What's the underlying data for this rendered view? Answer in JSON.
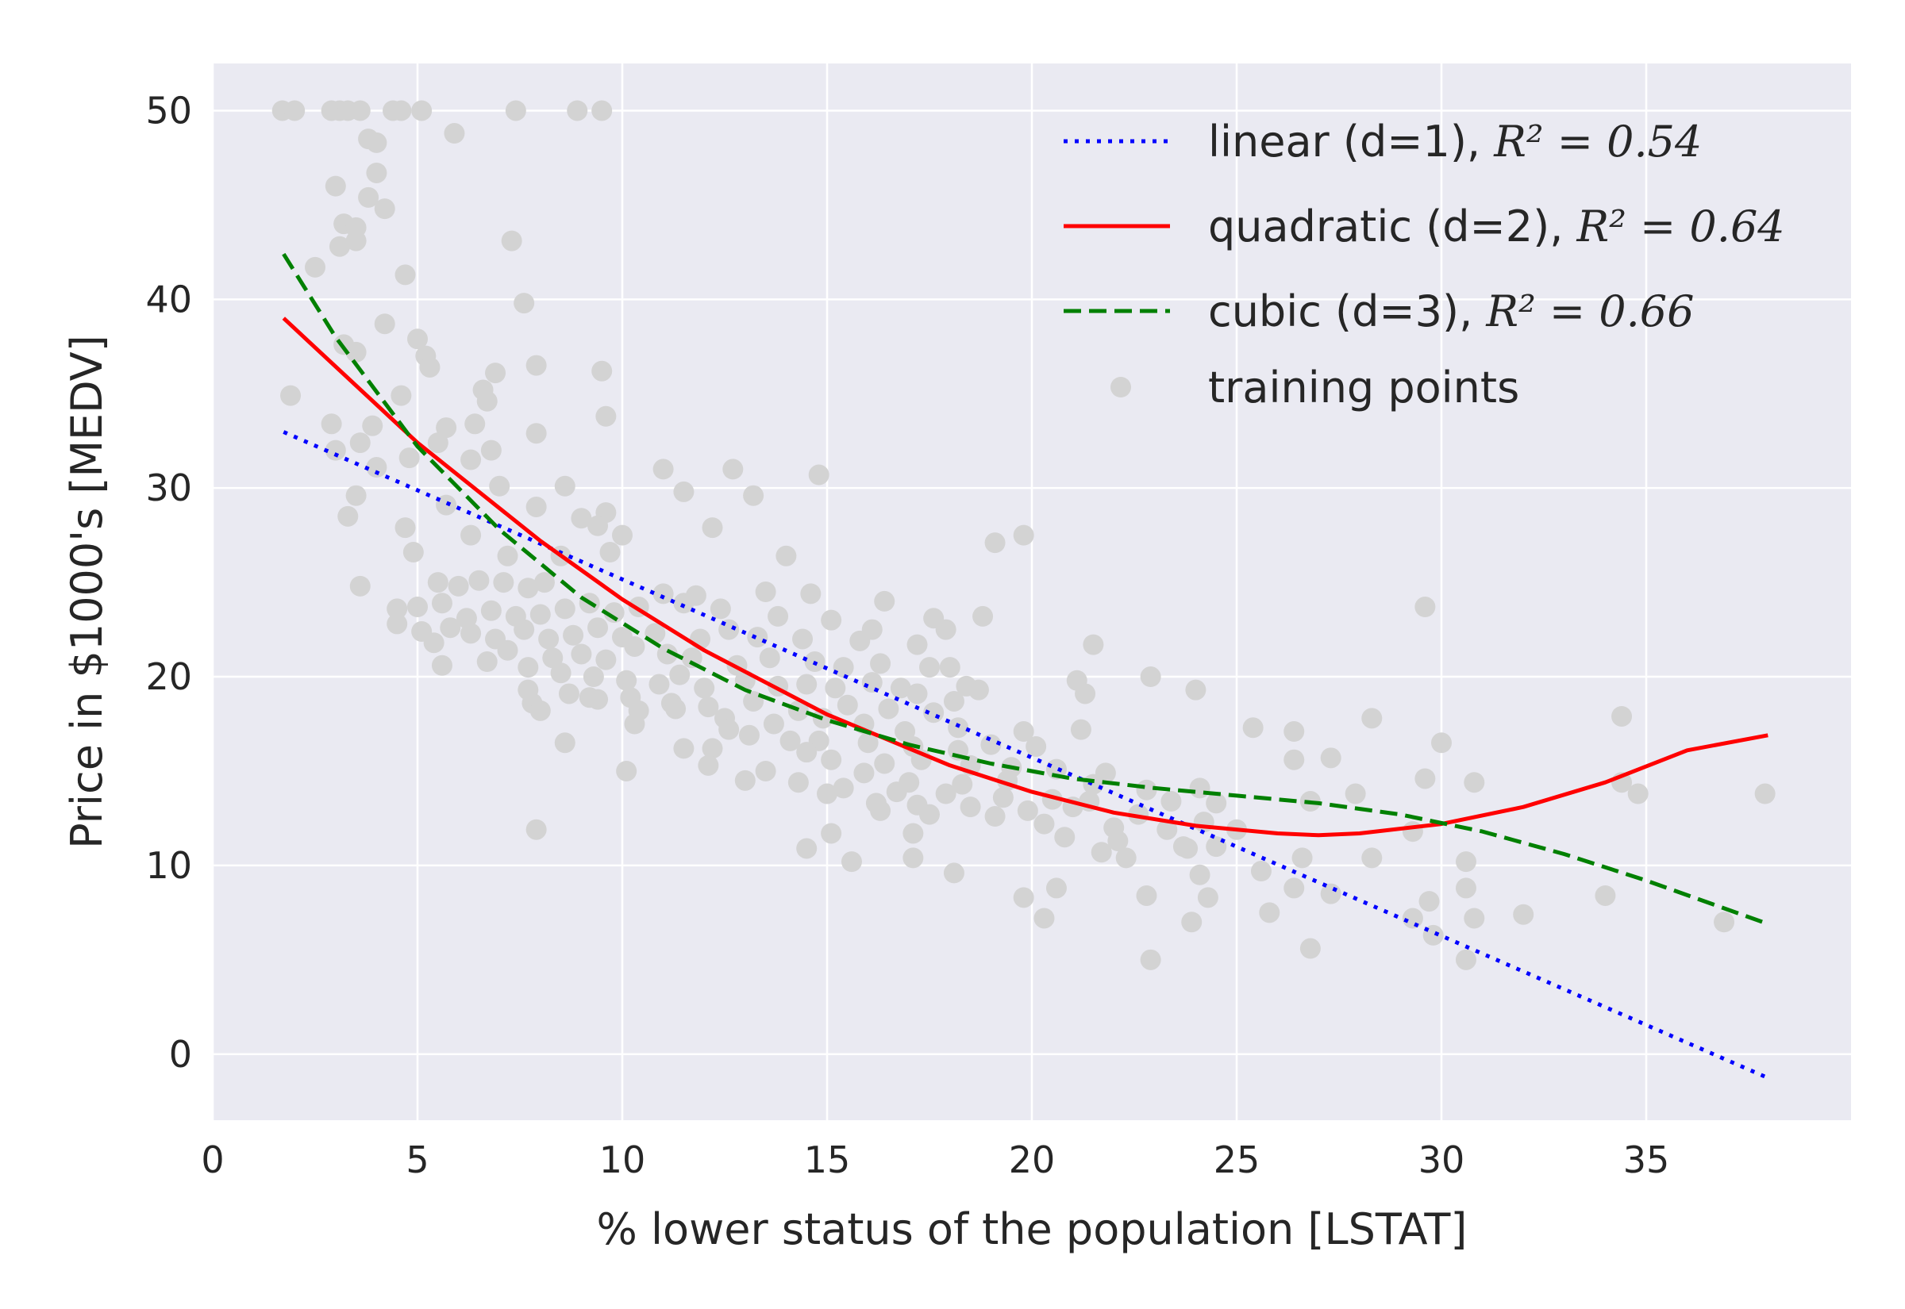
{
  "chart_data": {
    "type": "scatter",
    "xlabel": "% lower status of the population [LSTAT]",
    "ylabel": "Price in $1000's [MEDV]",
    "xlim": [
      0,
      40
    ],
    "ylim": [
      -3.5,
      52.5
    ],
    "xticks": [
      0,
      5,
      10,
      15,
      20,
      25,
      30,
      35
    ],
    "yticks": [
      0,
      10,
      20,
      30,
      40,
      50
    ],
    "grid": true,
    "legend_position": "top-right",
    "series": [
      {
        "name": "linear (d=1)",
        "r2_label": "R² = 0.54",
        "style": "dotted",
        "color": "#0000ff",
        "x": [
          1.73,
          37.97
        ],
        "y": [
          32.97,
          -1.26
        ]
      },
      {
        "name": "quadratic (d=2)",
        "r2_label": "R² = 0.64",
        "style": "solid",
        "color": "#ff0000",
        "x": [
          1.73,
          5,
          8,
          10,
          12,
          15,
          18,
          20,
          22,
          24,
          26,
          27,
          28,
          30,
          32,
          34,
          36,
          37.97
        ],
        "y": [
          39.0,
          32.4,
          27.2,
          24.1,
          21.4,
          18.0,
          15.3,
          13.9,
          12.8,
          12.1,
          11.7,
          11.6,
          11.7,
          12.2,
          13.1,
          14.4,
          16.1,
          16.9
        ]
      },
      {
        "name": "cubic (d=3)",
        "r2_label": "R² = 0.66",
        "style": "dashed",
        "color": "#008000",
        "x": [
          1.73,
          3,
          5,
          7,
          9,
          11,
          13,
          15,
          17,
          19,
          21,
          23,
          25,
          27,
          29,
          31,
          33,
          35,
          37.97
        ],
        "y": [
          42.4,
          38.0,
          32.2,
          27.8,
          24.2,
          21.5,
          19.3,
          17.7,
          16.4,
          15.4,
          14.6,
          14.1,
          13.7,
          13.3,
          12.7,
          11.8,
          10.6,
          9.2,
          6.9
        ]
      }
    ],
    "scatter": {
      "name": "training points",
      "color": "#d3d3d3",
      "points": [
        [
          1.7,
          50
        ],
        [
          2.0,
          50
        ],
        [
          2.9,
          50
        ],
        [
          3.1,
          50
        ],
        [
          3.3,
          50
        ],
        [
          3.6,
          50
        ],
        [
          4.4,
          50
        ],
        [
          4.6,
          50
        ],
        [
          5.1,
          50
        ],
        [
          7.4,
          50
        ],
        [
          8.9,
          50
        ],
        [
          9.5,
          50
        ],
        [
          5.9,
          48.8
        ],
        [
          3.8,
          48.5
        ],
        [
          4.0,
          48.3
        ],
        [
          4.0,
          46.7
        ],
        [
          3.0,
          46.0
        ],
        [
          3.8,
          45.4
        ],
        [
          4.2,
          44.8
        ],
        [
          3.2,
          44.0
        ],
        [
          3.5,
          43.8
        ],
        [
          3.1,
          42.8
        ],
        [
          3.5,
          43.1
        ],
        [
          7.3,
          43.1
        ],
        [
          2.5,
          41.7
        ],
        [
          4.7,
          41.3
        ],
        [
          7.6,
          39.8
        ],
        [
          4.2,
          38.7
        ],
        [
          5.0,
          37.9
        ],
        [
          3.2,
          37.6
        ],
        [
          3.5,
          37.2
        ],
        [
          5.2,
          37.0
        ],
        [
          5.3,
          36.4
        ],
        [
          7.9,
          36.5
        ],
        [
          9.5,
          36.2
        ],
        [
          6.9,
          36.1
        ],
        [
          1.9,
          34.9
        ],
        [
          6.6,
          35.2
        ],
        [
          6.7,
          34.6
        ],
        [
          4.6,
          34.9
        ],
        [
          2.9,
          33.4
        ],
        [
          3.9,
          33.3
        ],
        [
          5.7,
          33.2
        ],
        [
          6.4,
          33.4
        ],
        [
          9.6,
          33.8
        ],
        [
          5.5,
          32.4
        ],
        [
          7.9,
          32.9
        ],
        [
          3.6,
          32.4
        ],
        [
          3.0,
          32.0
        ],
        [
          4.8,
          31.6
        ],
        [
          6.3,
          31.5
        ],
        [
          6.8,
          32.0
        ],
        [
          4.0,
          31.1
        ],
        [
          12.7,
          31.0
        ],
        [
          14.8,
          30.7
        ],
        [
          11.0,
          31.0
        ],
        [
          7.0,
          30.1
        ],
        [
          8.6,
          30.1
        ],
        [
          3.5,
          29.6
        ],
        [
          11.5,
          29.8
        ],
        [
          13.2,
          29.6
        ],
        [
          5.7,
          29.1
        ],
        [
          7.9,
          29.0
        ],
        [
          3.3,
          28.5
        ],
        [
          9.0,
          28.4
        ],
        [
          9.6,
          28.7
        ],
        [
          9.4,
          28.0
        ],
        [
          12.2,
          27.9
        ],
        [
          4.7,
          27.9
        ],
        [
          6.3,
          27.5
        ],
        [
          10.0,
          27.5
        ],
        [
          9.7,
          26.6
        ],
        [
          14.0,
          26.4
        ],
        [
          19.8,
          27.5
        ],
        [
          19.1,
          27.1
        ],
        [
          4.9,
          26.6
        ],
        [
          7.2,
          26.4
        ],
        [
          8.5,
          26.4
        ],
        [
          5.5,
          25.0
        ],
        [
          6.0,
          24.8
        ],
        [
          6.5,
          25.1
        ],
        [
          7.1,
          25.0
        ],
        [
          7.7,
          24.7
        ],
        [
          8.1,
          25.0
        ],
        [
          3.6,
          24.8
        ],
        [
          11.0,
          24.4
        ],
        [
          11.8,
          24.3
        ],
        [
          14.6,
          24.4
        ],
        [
          13.5,
          24.5
        ],
        [
          16.4,
          24.0
        ],
        [
          4.5,
          23.6
        ],
        [
          5.0,
          23.7
        ],
        [
          5.6,
          23.9
        ],
        [
          6.2,
          23.1
        ],
        [
          6.8,
          23.5
        ],
        [
          7.4,
          23.2
        ],
        [
          8.0,
          23.3
        ],
        [
          8.6,
          23.6
        ],
        [
          9.2,
          23.9
        ],
        [
          9.8,
          23.4
        ],
        [
          10.4,
          23.7
        ],
        [
          11.5,
          23.9
        ],
        [
          12.4,
          23.6
        ],
        [
          13.8,
          23.2
        ],
        [
          15.1,
          23.0
        ],
        [
          17.6,
          23.1
        ],
        [
          18.8,
          23.2
        ],
        [
          4.5,
          22.8
        ],
        [
          5.1,
          22.4
        ],
        [
          5.8,
          22.6
        ],
        [
          6.3,
          22.3
        ],
        [
          6.9,
          22.0
        ],
        [
          7.6,
          22.5
        ],
        [
          8.2,
          22.0
        ],
        [
          8.8,
          22.2
        ],
        [
          9.4,
          22.6
        ],
        [
          10.0,
          22.1
        ],
        [
          10.8,
          22.3
        ],
        [
          11.9,
          22.0
        ],
        [
          12.6,
          22.5
        ],
        [
          13.3,
          22.1
        ],
        [
          14.4,
          22.0
        ],
        [
          15.8,
          21.9
        ],
        [
          16.1,
          22.5
        ],
        [
          17.2,
          21.7
        ],
        [
          17.9,
          22.5
        ],
        [
          21.5,
          21.7
        ],
        [
          5.4,
          21.8
        ],
        [
          6.7,
          20.8
        ],
        [
          7.2,
          21.4
        ],
        [
          8.3,
          21.0
        ],
        [
          9.0,
          21.2
        ],
        [
          9.6,
          20.9
        ],
        [
          10.3,
          21.6
        ],
        [
          11.1,
          21.2
        ],
        [
          11.7,
          21.0
        ],
        [
          12.8,
          20.6
        ],
        [
          13.6,
          21.0
        ],
        [
          14.7,
          20.8
        ],
        [
          15.4,
          20.5
        ],
        [
          16.3,
          20.7
        ],
        [
          17.5,
          20.5
        ],
        [
          18.0,
          20.5
        ],
        [
          5.6,
          20.6
        ],
        [
          7.7,
          20.5
        ],
        [
          8.5,
          20.2
        ],
        [
          9.3,
          20.0
        ],
        [
          10.1,
          19.8
        ],
        [
          10.9,
          19.6
        ],
        [
          11.4,
          20.1
        ],
        [
          12.0,
          19.4
        ],
        [
          13.0,
          19.8
        ],
        [
          13.8,
          19.5
        ],
        [
          14.5,
          19.6
        ],
        [
          15.2,
          19.4
        ],
        [
          16.1,
          19.7
        ],
        [
          16.8,
          19.4
        ],
        [
          17.2,
          19.1
        ],
        [
          18.4,
          19.5
        ],
        [
          18.7,
          19.3
        ],
        [
          21.1,
          19.8
        ],
        [
          21.3,
          19.1
        ],
        [
          22.9,
          20.0
        ],
        [
          24.0,
          19.3
        ],
        [
          7.7,
          19.3
        ],
        [
          8.7,
          19.1
        ],
        [
          9.4,
          18.8
        ],
        [
          10.2,
          18.9
        ],
        [
          11.2,
          18.6
        ],
        [
          12.1,
          18.4
        ],
        [
          13.2,
          18.7
        ],
        [
          14.3,
          18.2
        ],
        [
          15.5,
          18.5
        ],
        [
          16.5,
          18.3
        ],
        [
          17.6,
          18.1
        ],
        [
          18.1,
          18.7
        ],
        [
          7.8,
          18.6
        ],
        [
          8.0,
          18.2
        ],
        [
          9.2,
          18.9
        ],
        [
          10.4,
          18.2
        ],
        [
          11.3,
          18.3
        ],
        [
          12.5,
          17.8
        ],
        [
          13.7,
          17.5
        ],
        [
          14.9,
          17.8
        ],
        [
          15.9,
          17.5
        ],
        [
          16.9,
          17.1
        ],
        [
          18.2,
          17.3
        ],
        [
          19.8,
          17.1
        ],
        [
          21.2,
          17.2
        ],
        [
          25.4,
          17.3
        ],
        [
          26.4,
          17.1
        ],
        [
          28.3,
          17.8
        ],
        [
          34.4,
          17.9
        ],
        [
          10.3,
          17.5
        ],
        [
          12.6,
          17.2
        ],
        [
          13.1,
          16.9
        ],
        [
          14.1,
          16.6
        ],
        [
          14.8,
          16.6
        ],
        [
          16.0,
          16.5
        ],
        [
          17.1,
          16.3
        ],
        [
          18.2,
          16.1
        ],
        [
          19.0,
          16.4
        ],
        [
          20.1,
          16.3
        ],
        [
          30.0,
          16.5
        ],
        [
          8.6,
          16.5
        ],
        [
          11.5,
          16.2
        ],
        [
          12.2,
          16.2
        ],
        [
          14.5,
          16.0
        ],
        [
          15.1,
          15.6
        ],
        [
          16.4,
          15.4
        ],
        [
          17.3,
          15.6
        ],
        [
          18.5,
          15.3
        ],
        [
          19.5,
          15.2
        ],
        [
          20.6,
          15.1
        ],
        [
          21.8,
          14.9
        ],
        [
          26.4,
          15.6
        ],
        [
          27.3,
          15.7
        ],
        [
          12.1,
          15.3
        ],
        [
          13.5,
          15.0
        ],
        [
          10.1,
          15.0
        ],
        [
          15.9,
          14.9
        ],
        [
          17.0,
          14.4
        ],
        [
          18.3,
          14.3
        ],
        [
          19.4,
          14.5
        ],
        [
          21.5,
          14.3
        ],
        [
          22.8,
          14.0
        ],
        [
          24.1,
          14.1
        ],
        [
          29.6,
          14.6
        ],
        [
          30.8,
          14.4
        ],
        [
          34.4,
          14.4
        ],
        [
          13.0,
          14.5
        ],
        [
          14.3,
          14.4
        ],
        [
          15.4,
          14.1
        ],
        [
          16.7,
          13.9
        ],
        [
          17.9,
          13.8
        ],
        [
          19.3,
          13.6
        ],
        [
          20.5,
          13.5
        ],
        [
          21.4,
          13.4
        ],
        [
          23.4,
          13.4
        ],
        [
          24.5,
          13.3
        ],
        [
          27.9,
          13.8
        ],
        [
          34.8,
          13.8
        ],
        [
          37.9,
          13.8
        ],
        [
          15.0,
          13.8
        ],
        [
          16.2,
          13.3
        ],
        [
          17.2,
          13.2
        ],
        [
          18.5,
          13.1
        ],
        [
          19.9,
          12.9
        ],
        [
          21.0,
          13.1
        ],
        [
          22.6,
          12.7
        ],
        [
          24.2,
          12.3
        ],
        [
          26.8,
          13.4
        ],
        [
          16.3,
          12.9
        ],
        [
          17.5,
          12.7
        ],
        [
          19.1,
          12.6
        ],
        [
          20.3,
          12.2
        ],
        [
          22.0,
          12.0
        ],
        [
          23.3,
          11.9
        ],
        [
          25.0,
          11.9
        ],
        [
          29.3,
          11.8
        ],
        [
          7.9,
          11.9
        ],
        [
          15.1,
          11.7
        ],
        [
          17.1,
          11.7
        ],
        [
          20.8,
          11.5
        ],
        [
          22.1,
          11.3
        ],
        [
          23.7,
          11.0
        ],
        [
          24.5,
          11.0
        ],
        [
          14.5,
          10.9
        ],
        [
          15.6,
          10.2
        ],
        [
          17.1,
          10.4
        ],
        [
          21.7,
          10.7
        ],
        [
          22.3,
          10.4
        ],
        [
          23.8,
          10.9
        ],
        [
          26.6,
          10.4
        ],
        [
          28.3,
          10.4
        ],
        [
          30.6,
          10.2
        ],
        [
          18.1,
          9.6
        ],
        [
          24.1,
          9.5
        ],
        [
          25.6,
          9.7
        ],
        [
          20.6,
          8.8
        ],
        [
          22.8,
          8.4
        ],
        [
          26.4,
          8.8
        ],
        [
          30.6,
          8.8
        ],
        [
          19.8,
          8.3
        ],
        [
          24.3,
          8.3
        ],
        [
          27.3,
          8.5
        ],
        [
          29.7,
          8.1
        ],
        [
          34.0,
          8.4
        ],
        [
          20.3,
          7.2
        ],
        [
          23.9,
          7.0
        ],
        [
          25.8,
          7.5
        ],
        [
          29.3,
          7.2
        ],
        [
          30.8,
          7.2
        ],
        [
          32.0,
          7.4
        ],
        [
          36.9,
          7.0
        ],
        [
          29.8,
          6.3
        ],
        [
          26.8,
          5.6
        ],
        [
          22.9,
          5.0
        ],
        [
          30.6,
          5.0
        ],
        [
          29.6,
          23.7
        ]
      ]
    }
  }
}
